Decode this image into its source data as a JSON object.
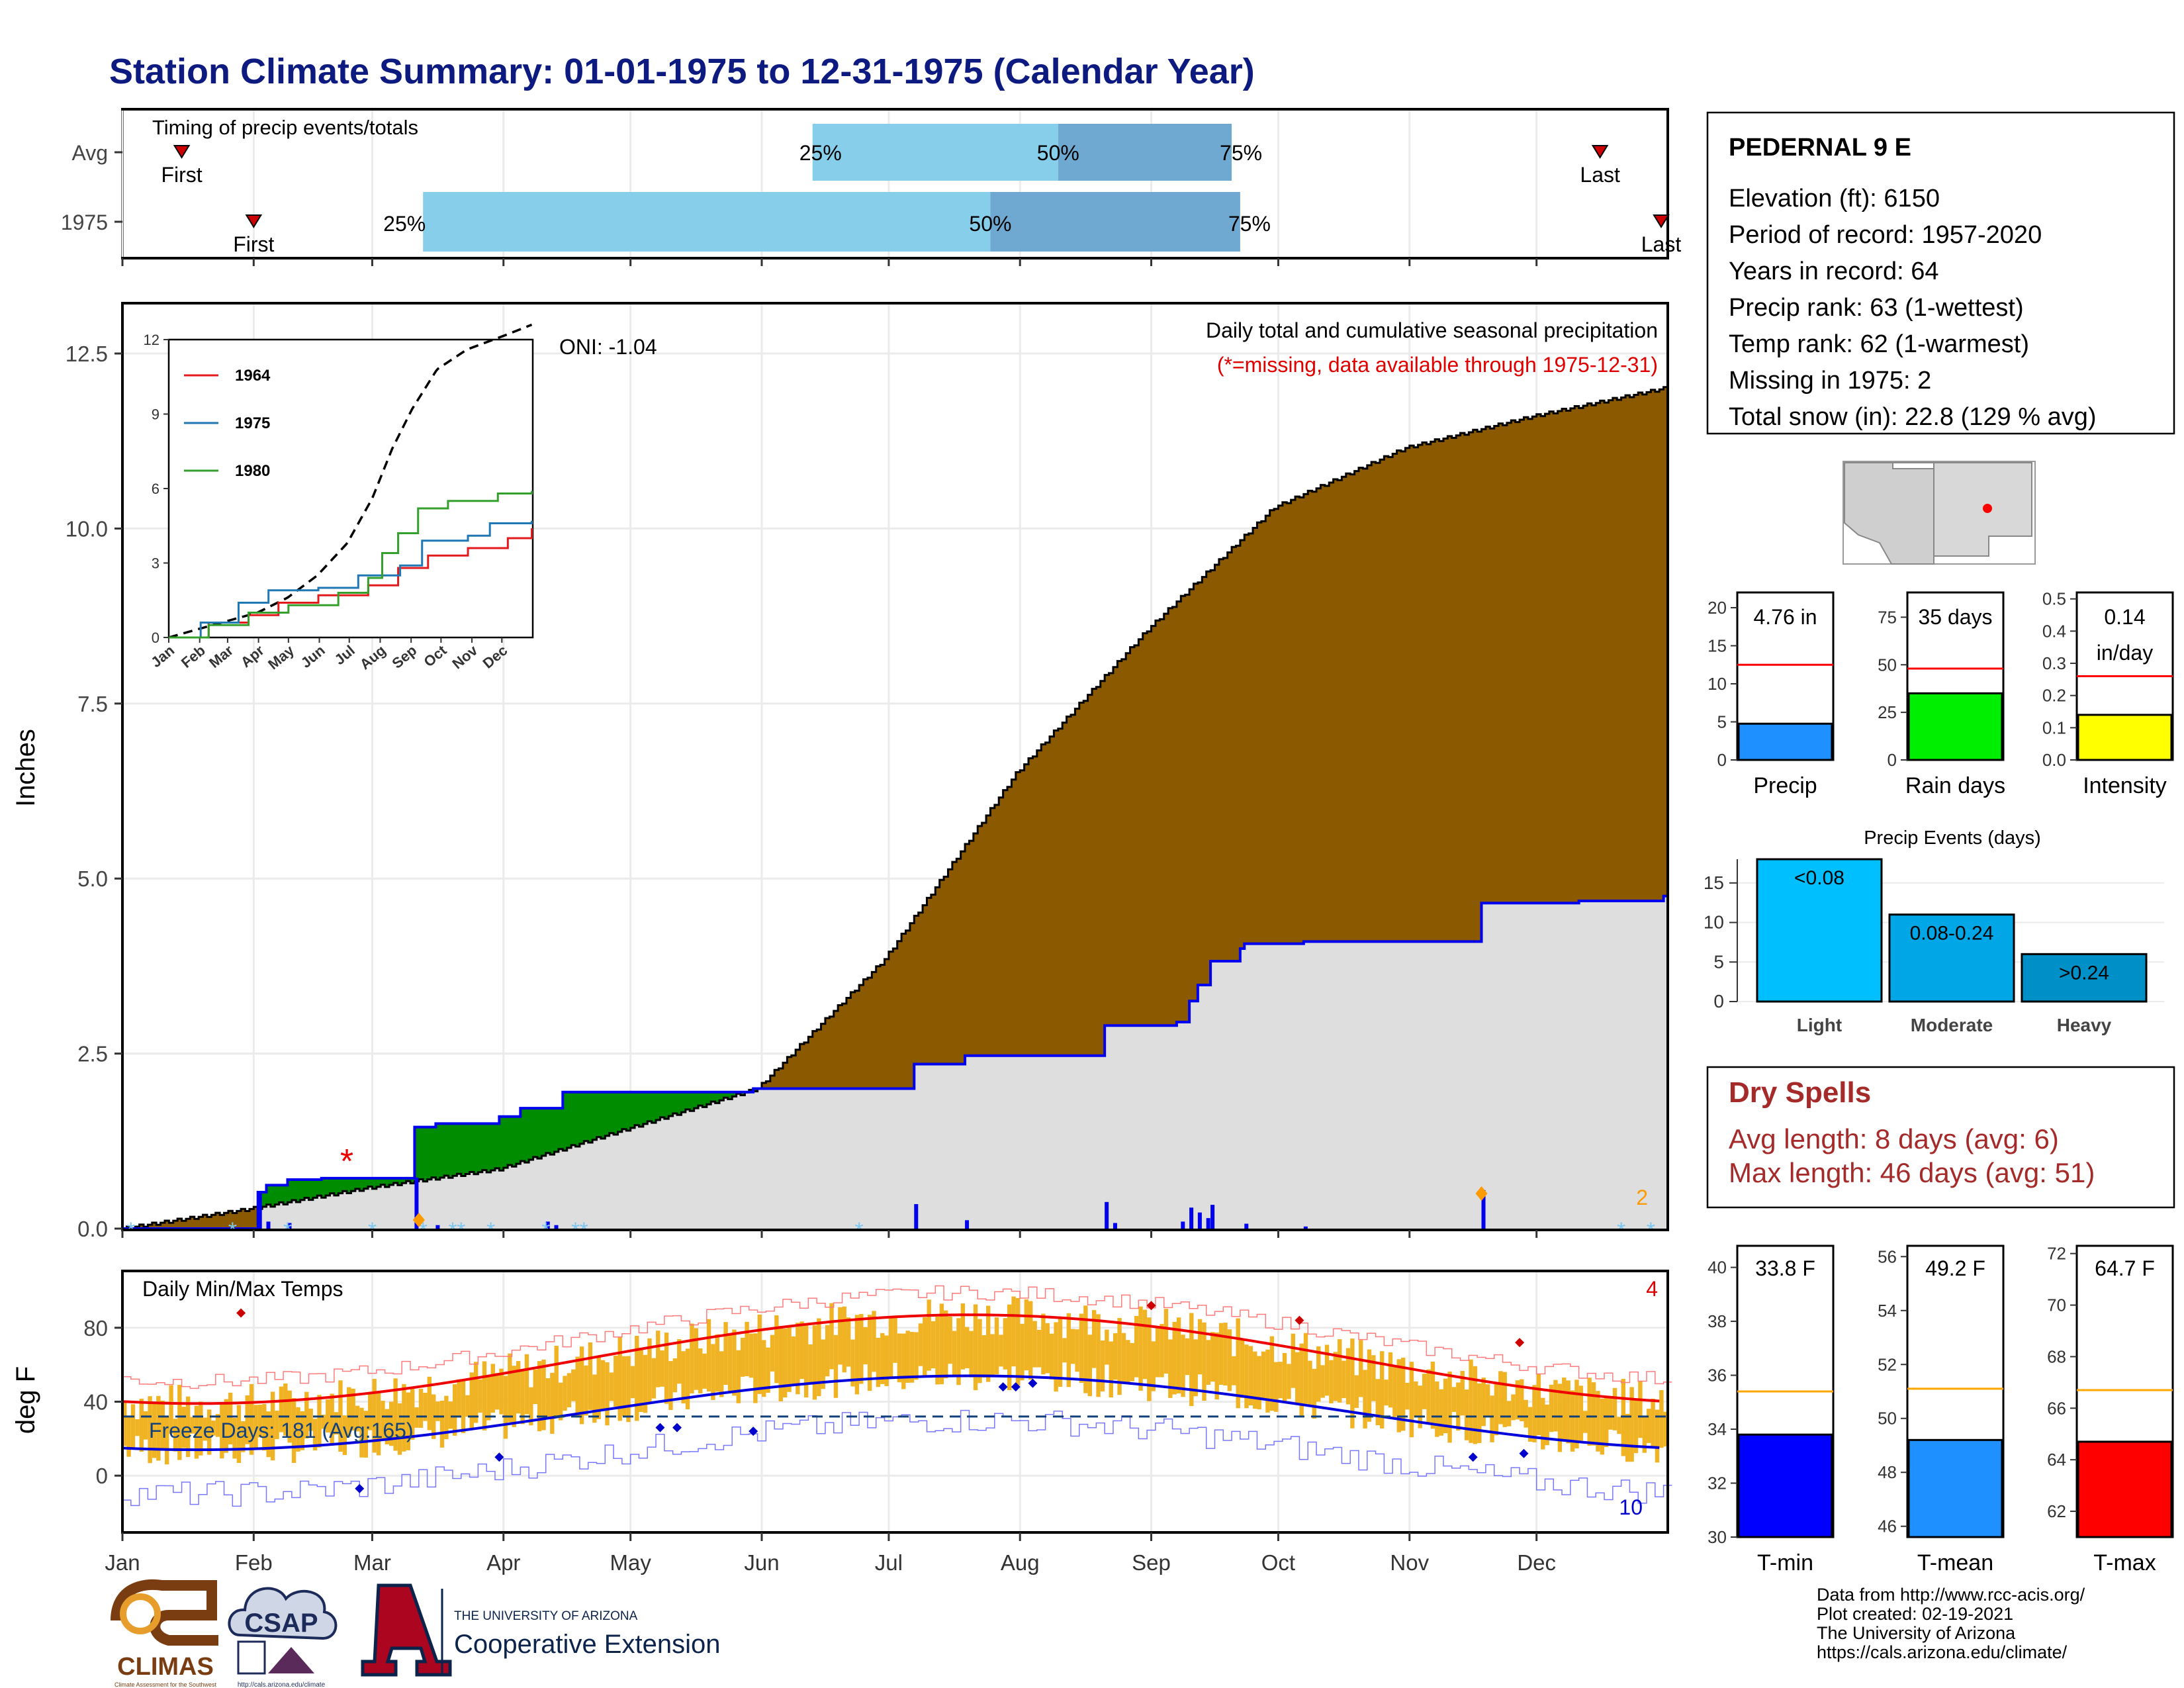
{
  "title": "Station Climate Summary: 01-01-1975 to 12-31-1975 (Calendar Year)",
  "months": [
    "Jan",
    "Feb",
    "Mar",
    "Apr",
    "May",
    "Jun",
    "Jul",
    "Aug",
    "Sep",
    "Oct",
    "Nov",
    "Dec"
  ],
  "timing": {
    "title": "Timing of precip events/totals",
    "rows": [
      {
        "label": "Avg",
        "first": "First",
        "last": "Last",
        "first_day": 15,
        "last_day": 350,
        "q25_day": 164,
        "q50_day": 222,
        "q75_day": 263,
        "q25": "25%",
        "q50": "50%",
        "q75": "75%"
      },
      {
        "label": "1975",
        "first": "First",
        "last": "Last",
        "first_day": 32,
        "last_day": 366,
        "q25_day": 72,
        "q50_day": 206,
        "q75_day": 265,
        "q25": "25%",
        "q50": "50%",
        "q75": "75%"
      }
    ]
  },
  "precip": {
    "ylabel": "Inches",
    "yticks": [
      0.0,
      2.5,
      5.0,
      7.5,
      10.0,
      12.5
    ],
    "ylim": [
      0,
      13.2
    ],
    "legend_line1": "Daily total and cumulative seasonal precipitation",
    "legend_line2": "(*=missing, data available through 1975-12-31)",
    "oni": "ONI: -1.04",
    "missing_count_label": "2",
    "normal_cum": [
      [
        1,
        0
      ],
      [
        31,
        0.28
      ],
      [
        59,
        0.58
      ],
      [
        90,
        0.85
      ],
      [
        120,
        1.42
      ],
      [
        151,
        2.0
      ],
      [
        181,
        3.85
      ],
      [
        212,
        6.5
      ],
      [
        243,
        8.55
      ],
      [
        273,
        10.3
      ],
      [
        304,
        11.15
      ],
      [
        334,
        11.6
      ],
      [
        365,
        12.0
      ]
    ],
    "obs_cum": [
      [
        1,
        0
      ],
      [
        32,
        0
      ],
      [
        33,
        0.52
      ],
      [
        35,
        0.62
      ],
      [
        40,
        0.7
      ],
      [
        48,
        0.72
      ],
      [
        68,
        0.72
      ],
      [
        70,
        1.45
      ],
      [
        75,
        1.5
      ],
      [
        90,
        1.6
      ],
      [
        95,
        1.72
      ],
      [
        105,
        1.95
      ],
      [
        120,
        1.95
      ],
      [
        150,
        2.0
      ],
      [
        186,
        2.0
      ],
      [
        188,
        2.35
      ],
      [
        200,
        2.47
      ],
      [
        232,
        2.47
      ],
      [
        233,
        2.9
      ],
      [
        250,
        2.95
      ],
      [
        253,
        3.25
      ],
      [
        255,
        3.48
      ],
      [
        258,
        3.82
      ],
      [
        265,
        4.0
      ],
      [
        266,
        4.07
      ],
      [
        280,
        4.1
      ],
      [
        320,
        4.1
      ],
      [
        322,
        4.65
      ],
      [
        345,
        4.68
      ],
      [
        365,
        4.75
      ]
    ],
    "daily_bars": [
      [
        33,
        0.52
      ],
      [
        35,
        0.1
      ],
      [
        40,
        0.08
      ],
      [
        70,
        0.73
      ],
      [
        75,
        0.05
      ],
      [
        101,
        0.1
      ],
      [
        103,
        0.05
      ],
      [
        188,
        0.35
      ],
      [
        200,
        0.12
      ],
      [
        233,
        0.38
      ],
      [
        235,
        0.08
      ],
      [
        251,
        0.1
      ],
      [
        253,
        0.3
      ],
      [
        255,
        0.23
      ],
      [
        257,
        0.15
      ],
      [
        258,
        0.34
      ],
      [
        266,
        0.07
      ],
      [
        280,
        0.03
      ],
      [
        322,
        0.55
      ]
    ]
  },
  "inset": {
    "yticks": [
      0,
      3,
      6,
      9,
      12
    ],
    "legend": [
      {
        "name": "1964",
        "color": "#e31a1c"
      },
      {
        "name": "1975",
        "color": "#1f78b4"
      },
      {
        "name": "1980",
        "color": "#33a02c"
      }
    ],
    "normal": [
      [
        1,
        0
      ],
      [
        45,
        0.5
      ],
      [
        90,
        1.0
      ],
      [
        120,
        1.6
      ],
      [
        150,
        2.5
      ],
      [
        180,
        3.8
      ],
      [
        205,
        5.6
      ],
      [
        225,
        7.6
      ],
      [
        245,
        9.2
      ],
      [
        270,
        10.8
      ],
      [
        300,
        11.6
      ],
      [
        340,
        12.2
      ],
      [
        365,
        12.6
      ]
    ],
    "series": [
      [
        [
          1,
          0
        ],
        [
          40,
          0.6
        ],
        [
          80,
          0.9
        ],
        [
          110,
          1.4
        ],
        [
          150,
          1.7
        ],
        [
          200,
          2.1
        ],
        [
          230,
          2.8
        ],
        [
          260,
          3.3
        ],
        [
          300,
          3.6
        ],
        [
          340,
          4.0
        ],
        [
          365,
          4.4
        ]
      ],
      [
        [
          1,
          0
        ],
        [
          33,
          0.6
        ],
        [
          70,
          1.4
        ],
        [
          100,
          1.9
        ],
        [
          150,
          2.0
        ],
        [
          190,
          2.5
        ],
        [
          233,
          2.9
        ],
        [
          255,
          3.9
        ],
        [
          300,
          4.1
        ],
        [
          322,
          4.6
        ],
        [
          365,
          4.7
        ]
      ],
      [
        [
          1,
          0
        ],
        [
          40,
          0.5
        ],
        [
          80,
          1.0
        ],
        [
          120,
          1.3
        ],
        [
          170,
          1.8
        ],
        [
          200,
          2.4
        ],
        [
          215,
          3.4
        ],
        [
          230,
          4.2
        ],
        [
          250,
          5.2
        ],
        [
          280,
          5.5
        ],
        [
          330,
          5.8
        ],
        [
          365,
          5.9
        ]
      ]
    ]
  },
  "temps": {
    "ylabel": "deg F",
    "title": "Daily Min/Max Temps",
    "yticks": [
      0,
      40,
      80
    ],
    "ylim": [
      -30,
      110
    ],
    "freeze": "Freeze Days: 181 (Avg:165)",
    "freeze_line": 32,
    "max_label": "4",
    "min_label": "10"
  },
  "station": {
    "name": "PEDERNAL 9 E",
    "lines": [
      "Elevation (ft): 6150",
      "Period of record: 1957-2020",
      "Years in record: 64",
      "Precip rank: 63 (1-wettest)",
      "Temp rank: 62 (1-warmest)",
      "Missing in 1975: 2",
      "Total snow (in): 22.8 (129 % avg)"
    ]
  },
  "mini_bars": [
    {
      "label": "Precip",
      "value_label": "4.76 in",
      "value": 4.76,
      "avg": 12.5,
      "ymax": 22,
      "ticks": [
        0,
        5,
        10,
        15,
        20
      ],
      "color": "#1e90ff"
    },
    {
      "label": "Rain days",
      "value_label": "35 days",
      "value": 35,
      "avg": 48,
      "ymax": 88,
      "ticks": [
        0,
        25,
        50,
        75
      ],
      "color": "#00ee00"
    },
    {
      "label": "Intensity",
      "value_label": "0.14",
      "value_label2": "in/day",
      "value": 0.14,
      "avg": 0.26,
      "ymax": 0.52,
      "ticks": [
        0.0,
        0.1,
        0.2,
        0.3,
        0.4,
        0.5
      ],
      "color": "#ffff00"
    }
  ],
  "events": {
    "title": "Precip Events (days)",
    "ticks": [
      0,
      5,
      10,
      15
    ],
    "ymax": 18,
    "bars": [
      {
        "cat": "Light",
        "label": "<0.08",
        "value": 18,
        "color": "#00bfff"
      },
      {
        "cat": "Moderate",
        "label": "0.08-0.24",
        "value": 11,
        "color": "#00a6e6"
      },
      {
        "cat": "Heavy",
        "label": ">0.24",
        "value": 6,
        "color": "#0090c8"
      }
    ]
  },
  "dry_spells": {
    "title": "Dry Spells",
    "avg": "Avg length: 8 days (avg: 6)",
    "max": "Max length: 46 days (avg: 51)"
  },
  "temp_bars": [
    {
      "label": "T-min",
      "value_label": "33.8 F",
      "value": 33.8,
      "avg": 35.4,
      "ymin": 30,
      "ymax": 40.8,
      "ticks": [
        30,
        32,
        34,
        36,
        38,
        40
      ],
      "color": "#0000ff"
    },
    {
      "label": "T-mean",
      "value_label": "49.2 F",
      "value": 49.2,
      "avg": 51.1,
      "ymin": 45.6,
      "ymax": 56.4,
      "ticks": [
        46,
        48,
        50,
        52,
        54,
        56
      ],
      "color": "#1e90ff"
    },
    {
      "label": "T-max",
      "value_label": "64.7 F",
      "value": 64.7,
      "avg": 66.7,
      "ymin": 61,
      "ymax": 72.3,
      "ticks": [
        62,
        64,
        66,
        68,
        70,
        72
      ],
      "color": "#ff0000"
    }
  ],
  "credits": [
    "Data from http://www.rcc-acis.org/",
    "Plot created: 02-19-2021",
    "The University of Arizona",
    "https://cals.arizona.edu/climate/"
  ],
  "logos": {
    "climas": "CLIMAS",
    "climas_small": "Climate Assessment for the Southwest",
    "csap": "CSAP",
    "csap_url": "http://cals.arizona.edu/climate",
    "ua_line1": "THE UNIVERSITY OF ARIZONA",
    "ua_line2": "Cooperative Extension"
  }
}
